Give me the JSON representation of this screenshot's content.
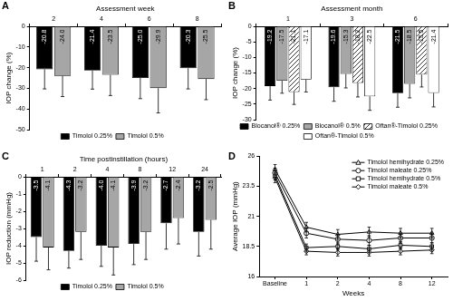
{
  "chart_data": [
    {
      "panel": "A",
      "type": "bar",
      "x_label": "Assessment week",
      "y_label": "IOP change (%)",
      "categories": [
        "2",
        "4",
        "6",
        "8"
      ],
      "series": [
        {
          "name": "Timolol 0.25%",
          "color": "#000000",
          "values": [
            -20.8,
            -21.4,
            -25.0,
            -20.3
          ],
          "value_labels": [
            "-20.8",
            "-21.4",
            "-25.0",
            "-20.3"
          ],
          "errors": [
            9.5,
            9,
            10,
            10
          ]
        },
        {
          "name": "Timolol 0.5%",
          "color": "#a6a6a6",
          "values": [
            -24.0,
            -23.5,
            -29.9,
            -25.5
          ],
          "value_labels": [
            "-24.0",
            "-23.5",
            "-29.9",
            "-25.5"
          ],
          "errors": [
            10,
            10,
            12,
            10
          ]
        }
      ],
      "ylim": [
        -50,
        0
      ],
      "yticks": [
        0,
        -10,
        -20,
        -30,
        -40,
        -50
      ],
      "grid": false,
      "legend": "bottom",
      "data_labels": true
    },
    {
      "panel": "B",
      "type": "bar",
      "x_label": "Assessment month",
      "y_label": "IOP change (%)",
      "categories": [
        "1",
        "3",
        "6"
      ],
      "series": [
        {
          "name": "Blocanol® 0.25%",
          "color": "#000000",
          "values": [
            -19.2,
            -19.6,
            -21.5
          ],
          "value_labels": [
            "-19.2",
            "-19.6",
            "-21.5"
          ],
          "errors": [
            4.5,
            4.5,
            4.5
          ]
        },
        {
          "name": "Blocanol® 0.5%",
          "color": "#a6a6a6",
          "values": [
            -17.5,
            -15.3,
            -18.5
          ],
          "value_labels": [
            "-17.5",
            "-15.3",
            "-18.5"
          ],
          "errors": [
            4,
            4.5,
            4.5
          ]
        },
        {
          "name": "Oftan®-Timolol 0.25%",
          "color": "#ffffff",
          "line_style": "hatched",
          "values": [
            -21.1,
            -18.2,
            -15.5
          ],
          "value_labels": [
            "-21.1",
            "-18.2",
            "-15.5"
          ],
          "errors": [
            4,
            4.5,
            4
          ]
        },
        {
          "name": "Oftan®-Timolol 0.5%",
          "color": "#ffffff",
          "values": [
            -17.1,
            -22.5,
            -21.4
          ],
          "value_labels": [
            "-17.1",
            "-22.5",
            "-21.4"
          ],
          "errors": [
            4,
            4.5,
            4.5
          ]
        }
      ],
      "ylim": [
        -30,
        0
      ],
      "yticks": [
        0,
        -5,
        -10,
        -15,
        -20,
        -25,
        -30
      ],
      "grid": false,
      "legend": "bottom",
      "data_labels": true
    },
    {
      "panel": "C",
      "type": "bar",
      "x_label": "Time postinstillation (hours)",
      "y_label": "IOP reduction (mmHg)",
      "categories": [
        "1",
        "2",
        "4",
        "8",
        "12",
        "24"
      ],
      "series": [
        {
          "name": "Timolol 0.25%",
          "color": "#000000",
          "values": [
            -3.5,
            -4.3,
            -4.0,
            -3.9,
            -2.7,
            -3.2
          ],
          "value_labels": [
            "-3.5",
            "-4.3",
            "-4.0",
            "-3.9",
            "-2.7",
            "-3.2"
          ],
          "errors": [
            1.4,
            1.0,
            1.2,
            1.2,
            1.5,
            1.4
          ]
        },
        {
          "name": "Timolol 0.5%",
          "color": "#a6a6a6",
          "values": [
            -4.1,
            -3.2,
            -4.1,
            -3.2,
            -2.4,
            -2.5
          ],
          "value_labels": [
            "-4.1",
            "-3.2",
            "-4.1",
            "-3.2",
            "-2.4",
            "-2.5"
          ],
          "errors": [
            1.3,
            1.6,
            1.6,
            1.6,
            1.5,
            1.7
          ]
        }
      ],
      "ylim": [
        -6,
        0
      ],
      "yticks": [
        0,
        -1,
        -2,
        -3,
        -4,
        -5,
        -6
      ],
      "grid": false,
      "legend": "bottom",
      "data_labels": true
    },
    {
      "panel": "D",
      "type": "line",
      "x_label": "Weeks",
      "y_label": "Average IOP (mmHg)",
      "categories": [
        "Baseline",
        "1",
        "2",
        "4",
        "8",
        "12"
      ],
      "series": [
        {
          "name": "Timolol hemihydrate 0.25%",
          "color": "#000000",
          "marker": "triangle",
          "values": [
            24.9,
            20.1,
            19.5,
            19.7,
            19.6,
            19.6
          ],
          "errors": [
            0.4,
            0.4,
            0.4,
            0.4,
            0.4,
            0.4
          ]
        },
        {
          "name": "Timolol maleate 0.25%",
          "color": "#000000",
          "marker": "circle",
          "values": [
            24.6,
            19.6,
            19.1,
            19.0,
            19.2,
            19.2
          ],
          "errors": [
            0.4,
            0.4,
            0.4,
            0.4,
            0.4,
            0.4
          ]
        },
        {
          "name": "Timolol hemihydrate 0.5%",
          "color": "#000000",
          "marker": "square",
          "values": [
            24.4,
            18.4,
            18.5,
            18.3,
            18.6,
            18.5
          ],
          "errors": [
            0.4,
            0.3,
            0.3,
            0.3,
            0.3,
            0.3
          ]
        },
        {
          "name": "Timolol maleate 0.5%",
          "color": "#000000",
          "marker": "diamond",
          "values": [
            24.2,
            18.1,
            18.0,
            18.0,
            18.1,
            18.2
          ],
          "errors": [
            0.4,
            0.3,
            0.3,
            0.3,
            0.3,
            0.3
          ]
        }
      ],
      "ylim": [
        16,
        26
      ],
      "yticks": [
        16,
        18.5,
        21,
        23.5,
        26
      ],
      "grid": false,
      "legend": "upper right"
    }
  ]
}
